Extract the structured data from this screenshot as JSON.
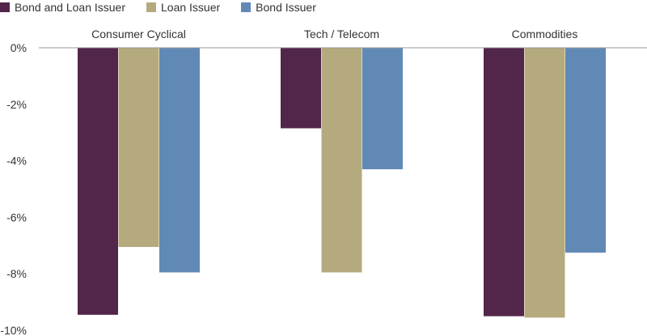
{
  "chart_data": {
    "type": "bar",
    "categories": [
      "Consumer Cyclical",
      "Tech / Telecom",
      "Commodities"
    ],
    "series": [
      {
        "name": "Bond and Loan Issuer",
        "color": "#52254A",
        "values": [
          -9.45,
          -2.85,
          -9.5
        ]
      },
      {
        "name": "Loan Issuer",
        "color": "#B5AA7D",
        "values": [
          -7.05,
          -7.95,
          -9.55
        ]
      },
      {
        "name": "Bond Issuer",
        "color": "#6189B6",
        "values": [
          -7.95,
          -4.3,
          -7.25
        ]
      }
    ],
    "ylim": [
      -10,
      0
    ],
    "yticks": [
      0,
      -2,
      -4,
      -6,
      -8,
      -10
    ],
    "ytick_labels": [
      "0%",
      "-2%",
      "-4%",
      "-6%",
      "-8%",
      "-10%"
    ],
    "legend_position": "top-left",
    "grid": false,
    "zero_line": true
  }
}
